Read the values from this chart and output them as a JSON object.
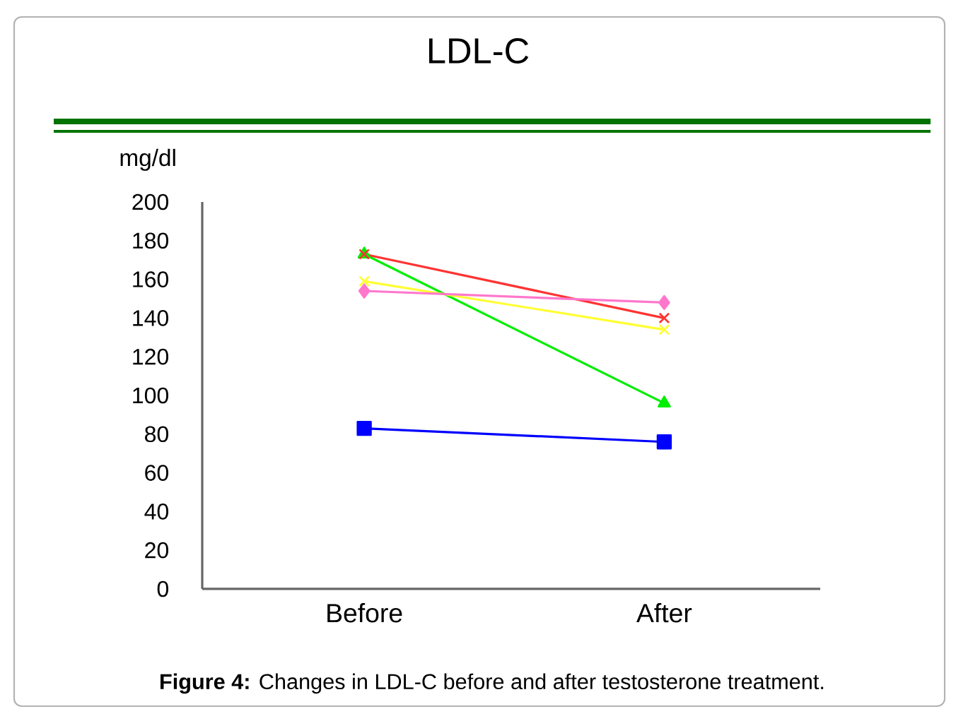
{
  "chart_data": {
    "type": "line",
    "title": "LDL-C",
    "ylabel": "mg/dl",
    "categories": [
      "Before",
      "After"
    ],
    "series": [
      {
        "color": "#0000ff",
        "values": [
          83,
          76
        ],
        "marker": "square"
      },
      {
        "color": "#00ee00",
        "values": [
          173,
          96
        ],
        "marker": "triangle"
      },
      {
        "color": "#ff3333",
        "values": [
          173,
          140
        ],
        "marker": "cross"
      },
      {
        "color": "#ffff33",
        "values": [
          159,
          134
        ],
        "marker": "cross"
      },
      {
        "color": "#ff77cc",
        "values": [
          154,
          148
        ],
        "marker": "diamond"
      }
    ],
    "ylim": [
      0,
      200
    ],
    "yticks": [
      0,
      20,
      40,
      60,
      80,
      100,
      120,
      140,
      160,
      180,
      200
    ],
    "line_style": "solid",
    "annotations": [
      "**Figure 4:** Changes in LDL-C before and after testosterone treatment."
    ]
  }
}
